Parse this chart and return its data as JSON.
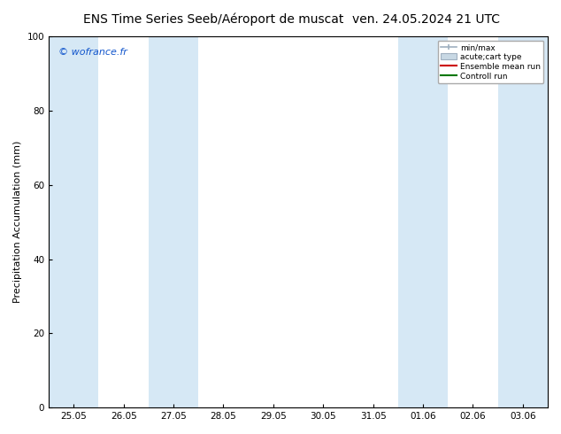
{
  "title_left": "ENS Time Series Seeb/Aéroport de muscat",
  "title_right": "ven. 24.05.2024 21 UTC",
  "ylabel": "Precipitation Accumulation (mm)",
  "watermark": "© wofrance.fr",
  "ylim": [
    0,
    100
  ],
  "yticks": [
    0,
    20,
    40,
    60,
    80,
    100
  ],
  "xtick_labels": [
    "25.05",
    "26.05",
    "27.05",
    "28.05",
    "29.05",
    "30.05",
    "31.05",
    "01.06",
    "02.06",
    "03.06"
  ],
  "xtick_positions": [
    0,
    1,
    2,
    3,
    4,
    5,
    6,
    7,
    8,
    9
  ],
  "xlim": [
    -0.5,
    9.5
  ],
  "band_color": "#d6e8f5",
  "shaded_intervals": [
    [
      -0.5,
      0.5
    ],
    [
      1.5,
      2.5
    ],
    [
      6.5,
      7.5
    ],
    [
      8.5,
      9.5
    ]
  ],
  "background_color": "#ffffff",
  "plot_bg_color": "#ffffff",
  "title_fontsize": 10,
  "axis_label_fontsize": 8,
  "tick_fontsize": 7.5,
  "watermark_color": "#1155cc",
  "legend_minmax_color": "#a0b0c0",
  "legend_carttype_color": "#c8d8e4",
  "legend_ensemble_color": "#cc0000",
  "legend_control_color": "#007700"
}
